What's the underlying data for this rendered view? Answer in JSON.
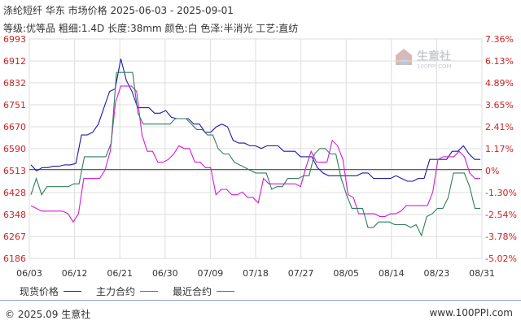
{
  "header": {
    "title": "涤纶短纤 华东 市场价格 2025-06-03 - 2025-09-01",
    "subtitle": "等级:优等品 粗细:1.4D 长度:38mm 颜色:白 色泽:半消光 工艺:直纺"
  },
  "watermark": {
    "brand": "生意社",
    "url": "100PPI.COM"
  },
  "legend": {
    "spot_label": "现货价格",
    "main_label": "主力合约",
    "near_label": "最近合约"
  },
  "footer": {
    "left": "© 2025.09 生意社",
    "right": "www.100PPI.com"
  },
  "colors": {
    "spot": "#1a1aa8",
    "main": "#d61ad6",
    "near": "#2e7d5a",
    "axis_text": "#cc2222",
    "base_line": "#444444"
  },
  "chart_data": {
    "type": "line",
    "ylim": [
      6186,
      6993
    ],
    "y_ticks_left": [
      "6993",
      "6912",
      "6832",
      "6751",
      "6670",
      "6590",
      "6513",
      "6428",
      "6348",
      "6267",
      "6186"
    ],
    "y_ticks_right": [
      "7.36%",
      "6.13%",
      "4.89%",
      "3.65%",
      "2.41%",
      "1.17%",
      "0%",
      "-1.30%",
      "-2.54%",
      "-3.78%",
      "-5.02%"
    ],
    "x_ticks": [
      "06/03",
      "06/12",
      "06/21",
      "06/30",
      "07/09",
      "07/18",
      "07/27",
      "08/05",
      "08/14",
      "08/23",
      "08/31"
    ],
    "base_value": 6513,
    "grid": true,
    "series": [
      {
        "name": "现货价格",
        "values": [
          6530,
          6508,
          6520,
          6520,
          6525,
          6525,
          6530,
          6530,
          6535,
          6640,
          6640,
          6650,
          6680,
          6740,
          6800,
          6810,
          6920,
          6840,
          6800,
          6740,
          6740,
          6740,
          6720,
          6720,
          6730,
          6705,
          6700,
          6700,
          6700,
          6680,
          6680,
          6650,
          6650,
          6670,
          6680,
          6670,
          6620,
          6610,
          6610,
          6600,
          6600,
          6590,
          6600,
          6600,
          6600,
          6580,
          6580,
          6580,
          6560,
          6560,
          6560,
          6520,
          6500,
          6490,
          6490,
          6490,
          6490,
          6490,
          6490,
          6500,
          6500,
          6480,
          6480,
          6480,
          6480,
          6490,
          6480,
          6470,
          6470,
          6480,
          6480,
          6550,
          6550,
          6550,
          6550,
          6580,
          6580,
          6600,
          6570,
          6550,
          6550
        ]
      },
      {
        "name": "主力合约",
        "values": [
          6380,
          6370,
          6360,
          6360,
          6360,
          6360,
          6360,
          6350,
          6320,
          6350,
          6480,
          6480,
          6480,
          6480,
          6510,
          6580,
          6760,
          6820,
          6820,
          6820,
          6800,
          6640,
          6580,
          6580,
          6540,
          6540,
          6550,
          6570,
          6600,
          6590,
          6590,
          6540,
          6540,
          6520,
          6520,
          6420,
          6440,
          6440,
          6420,
          6420,
          6430,
          6410,
          6410,
          6390,
          6480,
          6460,
          6460,
          6460,
          6460,
          6460,
          6460,
          6450,
          6520,
          6580,
          6540,
          6540,
          6540,
          6620,
          6600,
          6550,
          6420,
          6410,
          6350,
          6350,
          6350,
          6350,
          6340,
          6340,
          6350,
          6350,
          6360,
          6380,
          6380,
          6380,
          6380,
          6380,
          6430,
          6550,
          6560,
          6560,
          6560,
          6580,
          6560,
          6500,
          6480,
          6480
        ]
      },
      {
        "name": "最近合约",
        "values": [
          6420,
          6480,
          6420,
          6450,
          6450,
          6450,
          6450,
          6450,
          6460,
          6460,
          6560,
          6560,
          6560,
          6560,
          6560,
          6610,
          6870,
          6870,
          6870,
          6870,
          6720,
          6680,
          6680,
          6680,
          6680,
          6680,
          6680,
          6700,
          6700,
          6700,
          6680,
          6660,
          6660,
          6640,
          6640,
          6590,
          6570,
          6570,
          6540,
          6530,
          6520,
          6510,
          6500,
          6500,
          6500,
          6440,
          6450,
          6450,
          6480,
          6480,
          6480,
          6490,
          6490,
          6570,
          6590,
          6590,
          6570,
          6570,
          6480,
          6420,
          6370,
          6370,
          6370,
          6300,
          6300,
          6320,
          6320,
          6320,
          6310,
          6310,
          6310,
          6300,
          6310,
          6270,
          6340,
          6350,
          6370,
          6370,
          6410,
          6500,
          6500,
          6500,
          6450,
          6370,
          6370
        ]
      }
    ]
  }
}
